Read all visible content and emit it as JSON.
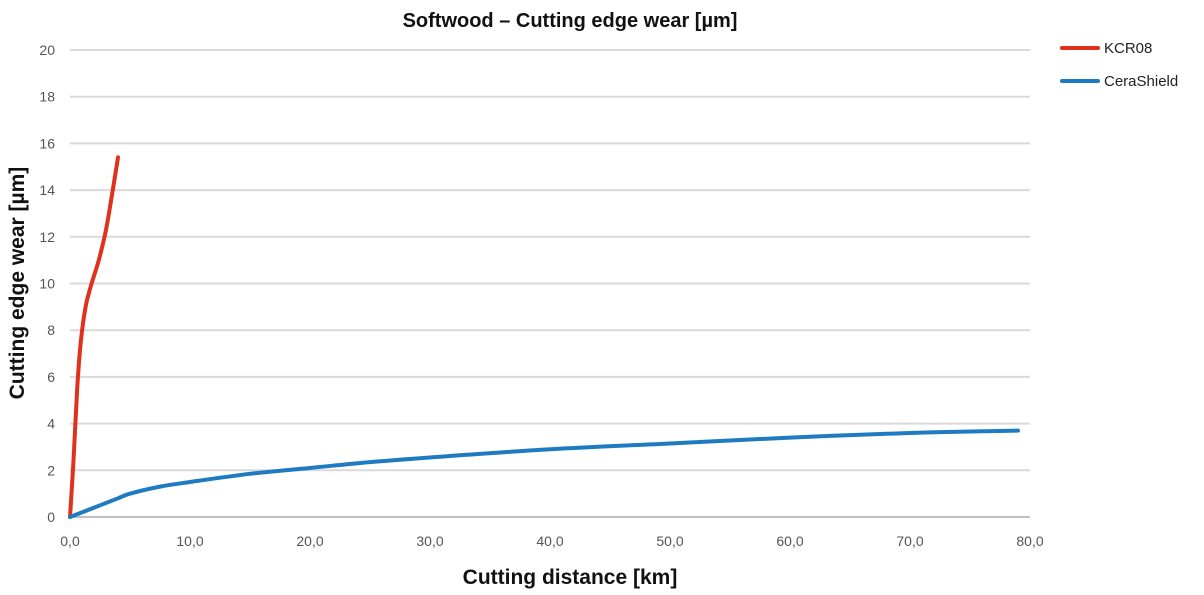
{
  "chart_data": {
    "type": "line",
    "title": "Softwood – Cutting edge wear [µm]",
    "xlabel": "Cutting distance [km]",
    "ylabel": "Cutting edge wear [µm]",
    "xlim": [
      0,
      80
    ],
    "ylim": [
      0,
      20
    ],
    "x_ticks": [
      0,
      10,
      20,
      30,
      40,
      50,
      60,
      70,
      80
    ],
    "x_tick_labels": [
      "0,0",
      "10,0",
      "20,0",
      "30,0",
      "40,0",
      "50,0",
      "60,0",
      "70,0",
      "80,0"
    ],
    "y_ticks": [
      0,
      2,
      4,
      6,
      8,
      10,
      12,
      14,
      16,
      18,
      20
    ],
    "y_tick_labels": [
      "0",
      "2",
      "4",
      "6",
      "8",
      "10",
      "12",
      "14",
      "16",
      "18",
      "20"
    ],
    "grid": "horizontal",
    "legend_position": "top-right",
    "series": [
      {
        "name": "KCR08",
        "color": "#e0301e",
        "points": [
          [
            0.0,
            0.0
          ],
          [
            0.3,
            2.5
          ],
          [
            0.6,
            5.5
          ],
          [
            0.9,
            7.5
          ],
          [
            1.3,
            9.0
          ],
          [
            1.8,
            10.0
          ],
          [
            2.4,
            11.0
          ],
          [
            3.0,
            12.3
          ],
          [
            3.5,
            13.8
          ],
          [
            4.0,
            15.4
          ]
        ]
      },
      {
        "name": "CeraShield",
        "color": "#1f7bc1",
        "points": [
          [
            0.0,
            0.0
          ],
          [
            1.0,
            0.2
          ],
          [
            2.5,
            0.5
          ],
          [
            4.0,
            0.8
          ],
          [
            5.0,
            1.0
          ],
          [
            7.5,
            1.3
          ],
          [
            10.0,
            1.5
          ],
          [
            15.0,
            1.85
          ],
          [
            20.0,
            2.1
          ],
          [
            25.0,
            2.35
          ],
          [
            30.0,
            2.55
          ],
          [
            40.0,
            2.9
          ],
          [
            50.0,
            3.15
          ],
          [
            60.0,
            3.4
          ],
          [
            70.0,
            3.6
          ],
          [
            79.0,
            3.7
          ]
        ]
      }
    ]
  }
}
